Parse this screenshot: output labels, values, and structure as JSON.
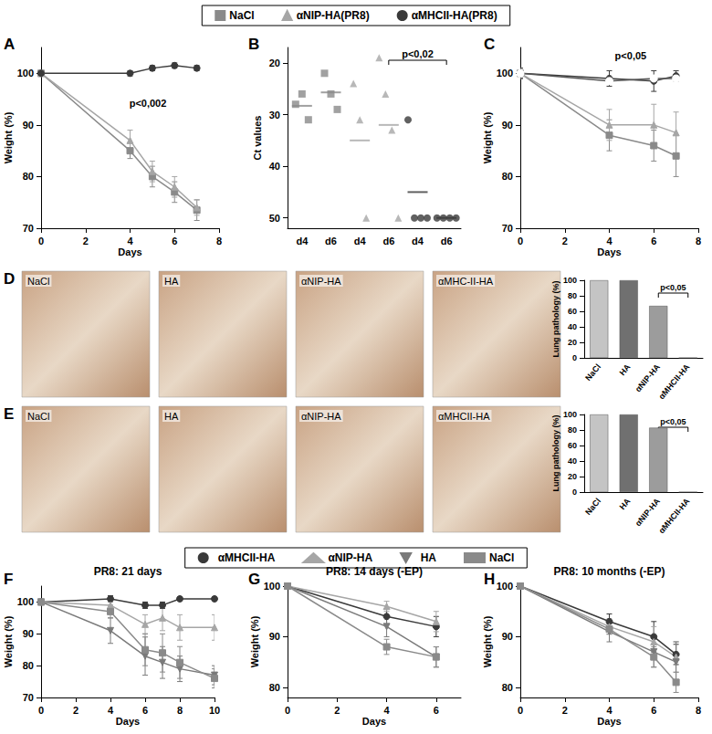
{
  "chart_data": [
    {
      "panel": "A",
      "type": "line",
      "legend": "top",
      "xlabel": "Days",
      "ylabel": "Weight (%)",
      "x": [
        0,
        4,
        5,
        6,
        7
      ],
      "xlim": [
        0,
        8
      ],
      "xticks": [
        0,
        2,
        4,
        6,
        8
      ],
      "ylim": [
        70,
        105
      ],
      "yticks": [
        70,
        80,
        90,
        100
      ],
      "annotation": "p<0,002",
      "series": [
        {
          "name": "NaCl",
          "color": "#8a8a8a",
          "marker": "square",
          "values": [
            100,
            85,
            80,
            77,
            73.5
          ],
          "errors": [
            0,
            1.5,
            2,
            2,
            2
          ]
        },
        {
          "name": "αNIP-HA(PR8)",
          "color": "#a6a6a6",
          "marker": "triangle",
          "values": [
            100,
            87,
            81,
            78,
            74
          ],
          "errors": [
            0,
            2,
            2,
            2,
            1.5
          ]
        },
        {
          "name": "αMHCII-HA(PR8)",
          "color": "#3a3a3a",
          "marker": "circle",
          "values": [
            100,
            100,
            101,
            101.5,
            101
          ],
          "errors": [
            0,
            0.5,
            0.5,
            0.5,
            0.5
          ]
        }
      ]
    },
    {
      "panel": "B",
      "type": "scatter",
      "ylabel": "Ct values",
      "categories": [
        "d4",
        "d6",
        "d4",
        "d6",
        "d4",
        "d6"
      ],
      "ylim": [
        52,
        17
      ],
      "yticks": [
        20,
        30,
        40,
        50
      ],
      "annotation": "p<0,02",
      "series": [
        {
          "name": "NaCl",
          "color": "#8a8a8a",
          "marker": "square",
          "values": [
            [
              28,
              26,
              31
            ],
            [
              22,
              26,
              29
            ],
            null,
            null,
            null,
            null
          ],
          "means": [
            28.3,
            25.7,
            null,
            null,
            null,
            null
          ]
        },
        {
          "name": "αNIP-HA(PR8)",
          "color": "#a6a6a6",
          "marker": "triangle",
          "values": [
            null,
            null,
            [
              24,
              31,
              50
            ],
            [
              19,
              26,
              33,
              50
            ],
            null,
            null
          ],
          "means": [
            null,
            null,
            35,
            32,
            null,
            null
          ]
        },
        {
          "name": "αMHCII-HA(PR8)",
          "color": "#3a3a3a",
          "marker": "circle",
          "values": [
            null,
            null,
            null,
            null,
            [
              31,
              50,
              50,
              50
            ],
            [
              50,
              50,
              50,
              50
            ]
          ],
          "means": [
            null,
            null,
            null,
            null,
            45,
            50
          ]
        }
      ]
    },
    {
      "panel": "C",
      "type": "line",
      "xlabel": "Days",
      "ylabel": "Weight (%)",
      "x": [
        0,
        4,
        6,
        7
      ],
      "xlim": [
        0,
        8
      ],
      "xticks": [
        0,
        2,
        4,
        6,
        8
      ],
      "ylim": [
        70,
        105
      ],
      "yticks": [
        70,
        80,
        90,
        100
      ],
      "annotation": "p<0,05",
      "series": [
        {
          "name": "NaCl",
          "color": "#8a8a8a",
          "marker": "square",
          "values": [
            100,
            88,
            86,
            84
          ],
          "errors": [
            1,
            3,
            3,
            4
          ]
        },
        {
          "name": "αNIP-HA(PR8)",
          "color": "#a6a6a6",
          "marker": "triangle",
          "values": [
            100,
            90,
            90,
            88.5
          ],
          "errors": [
            1,
            3,
            4,
            4
          ]
        },
        {
          "name": "αMHCII-HA(PR8)",
          "color": "#3a3a3a",
          "marker": "circle",
          "values": [
            100,
            99,
            98.5,
            99.5
          ],
          "errors": [
            1,
            1.5,
            2,
            1
          ]
        },
        {
          "color": "#555555",
          "marker": "open-circle",
          "values": [
            100,
            98.5,
            99,
            99
          ]
        }
      ]
    },
    {
      "panel": "D",
      "type": "bar",
      "image_labels": [
        "NaCl",
        "HA",
        "αNIP-HA",
        "αMHC-II-HA"
      ],
      "categories": [
        "NaCl",
        "HA",
        "αNIP-HA",
        "αMHCII-HA"
      ],
      "values": [
        100,
        100,
        67,
        0
      ],
      "colors": [
        "#c4c4c4",
        "#707070",
        "#9c9c9c",
        "#9c9c9c"
      ],
      "ylabel": "Lung pathology (%)",
      "ylim": [
        0,
        100
      ],
      "yticks": [
        0,
        20,
        40,
        60,
        80,
        100
      ],
      "annotation": "p<0,05"
    },
    {
      "panel": "E",
      "type": "bar",
      "image_labels": [
        "NaCl",
        "HA",
        "αNIP-HA",
        "αMHCII-HA"
      ],
      "categories": [
        "NaCl",
        "HA",
        "αNIP-HA",
        "αMHCII-HA"
      ],
      "values": [
        100,
        100,
        83,
        0
      ],
      "colors": [
        "#c4c4c4",
        "#707070",
        "#9c9c9c",
        "#9c9c9c"
      ],
      "ylabel": "Lung pathology (%)",
      "ylim": [
        0,
        100
      ],
      "yticks": [
        0,
        20,
        40,
        60,
        80,
        100
      ],
      "annotation": "p<0,05"
    },
    {
      "panel": "F",
      "type": "line",
      "legend": "top",
      "title": "PR8: 21 days",
      "xlabel": "Days",
      "ylabel": "Weight (%)",
      "x": [
        0,
        4,
        6,
        7,
        8,
        10
      ],
      "xlim": [
        0,
        10
      ],
      "xticks": [
        0,
        2,
        4,
        6,
        8,
        10
      ],
      "ylim": [
        70,
        105
      ],
      "yticks": [
        70,
        80,
        90,
        100
      ],
      "series": [
        {
          "name": "αMHCII-HA",
          "color": "#3a3a3a",
          "marker": "circle",
          "values": [
            100,
            101,
            99,
            99,
            101,
            101
          ],
          "errors": [
            0,
            1,
            1,
            1,
            0.5,
            0.5
          ]
        },
        {
          "name": "αNIP-HA",
          "color": "#a6a6a6",
          "marker": "triangle",
          "values": [
            100,
            99,
            93,
            95,
            92,
            92
          ],
          "errors": [
            0,
            1,
            3,
            4,
            4,
            4
          ]
        },
        {
          "name": "HA",
          "color": "#7a7a7a",
          "marker": "triangle-down",
          "values": [
            100,
            91,
            83,
            81,
            79,
            77
          ],
          "errors": [
            0,
            4,
            6,
            5,
            4,
            3
          ]
        },
        {
          "name": "NaCl",
          "color": "#8a8a8a",
          "marker": "square",
          "values": [
            100,
            97,
            85,
            84,
            81,
            76
          ],
          "errors": [
            0,
            2,
            5,
            6,
            5,
            3
          ]
        }
      ]
    },
    {
      "panel": "G",
      "type": "line",
      "title": "PR8: 14 days (-EP)",
      "xlabel": "Days",
      "ylabel": "Weight (%)",
      "x": [
        0,
        4,
        6
      ],
      "xlim": [
        0,
        7
      ],
      "xticks": [
        0,
        2,
        4,
        6
      ],
      "ylim": [
        78,
        100
      ],
      "yticks": [
        80,
        90,
        100
      ],
      "series": [
        {
          "name": "αMHCII-HA",
          "color": "#3a3a3a",
          "marker": "circle",
          "values": [
            100,
            94,
            92
          ],
          "errors": [
            0,
            1.5,
            2
          ]
        },
        {
          "name": "αNIP-HA",
          "color": "#a6a6a6",
          "marker": "triangle",
          "values": [
            100,
            96,
            93
          ],
          "errors": [
            0,
            1,
            2
          ]
        },
        {
          "name": "HA",
          "color": "#7a7a7a",
          "marker": "triangle-down",
          "values": [
            100,
            92,
            86
          ],
          "errors": [
            0,
            2,
            2
          ]
        },
        {
          "name": "NaCl",
          "color": "#8a8a8a",
          "marker": "square",
          "values": [
            100,
            88,
            86
          ],
          "errors": [
            0,
            1.5,
            2
          ]
        }
      ]
    },
    {
      "panel": "H",
      "type": "line",
      "title": "PR8: 10 months (-EP)",
      "xlabel": "Days",
      "ylabel": "Weight (%)",
      "x": [
        0,
        4,
        6,
        7
      ],
      "xlim": [
        0,
        8
      ],
      "xticks": [
        0,
        2,
        4,
        6,
        8
      ],
      "ylim": [
        78,
        100
      ],
      "yticks": [
        80,
        90,
        100
      ],
      "series": [
        {
          "name": "αMHCII-HA",
          "color": "#3a3a3a",
          "marker": "circle",
          "values": [
            100,
            93,
            90,
            86.5
          ],
          "errors": [
            0,
            1.5,
            3,
            2
          ]
        },
        {
          "name": "αNIP-HA",
          "color": "#a6a6a6",
          "marker": "triangle",
          "values": [
            100,
            92,
            89,
            86
          ],
          "errors": [
            0,
            1.5,
            3,
            3
          ]
        },
        {
          "name": "HA",
          "color": "#7a7a7a",
          "marker": "triangle-down",
          "values": [
            100,
            91,
            87,
            85
          ],
          "errors": [
            0,
            2,
            3,
            4
          ]
        },
        {
          "name": "NaCl",
          "color": "#8a8a8a",
          "marker": "square",
          "values": [
            100,
            91.5,
            86,
            81
          ],
          "errors": [
            0,
            1,
            2,
            2
          ]
        }
      ]
    }
  ]
}
